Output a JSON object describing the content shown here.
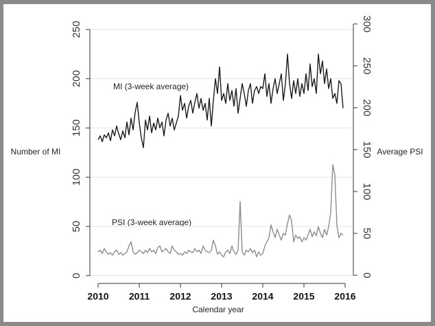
{
  "chart_data": {
    "type": "line",
    "x_label": "Calendar year",
    "y_label": "Number of MI",
    "y2_label": "Average PSI",
    "annotations": [
      "MI (3-week average)",
      "PSI (3-week average)"
    ],
    "xlim": [
      2009.8,
      2016.2
    ],
    "xticks": [
      2010,
      2011,
      2012,
      2013,
      2014,
      2015,
      2016
    ],
    "ylim": [
      -3,
      259
    ],
    "yticks": [
      0,
      50,
      100,
      150,
      200,
      250
    ],
    "y2lim": [
      -4,
      304
    ],
    "y2ticks": [
      0,
      50,
      100,
      150,
      200,
      250,
      300
    ],
    "grid": true,
    "x": [
      2010,
      2010.05,
      2010.1,
      2010.15,
      2010.2,
      2010.25,
      2010.3,
      2010.35,
      2010.4,
      2010.45,
      2010.5,
      2010.55,
      2010.6,
      2010.65,
      2010.7,
      2010.75,
      2010.8,
      2010.85,
      2010.9,
      2010.95,
      2011,
      2011.05,
      2011.1,
      2011.15,
      2011.2,
      2011.25,
      2011.3,
      2011.35,
      2011.4,
      2011.45,
      2011.5,
      2011.55,
      2011.6,
      2011.65,
      2011.7,
      2011.75,
      2011.8,
      2011.85,
      2011.9,
      2011.95,
      2012,
      2012.05,
      2012.1,
      2012.15,
      2012.2,
      2012.25,
      2012.3,
      2012.35,
      2012.4,
      2012.45,
      2012.5,
      2012.55,
      2012.6,
      2012.65,
      2012.7,
      2012.75,
      2012.8,
      2012.85,
      2012.9,
      2012.95,
      2013,
      2013.05,
      2013.1,
      2013.15,
      2013.2,
      2013.25,
      2013.3,
      2013.35,
      2013.4,
      2013.45,
      2013.5,
      2013.55,
      2013.6,
      2013.65,
      2013.7,
      2013.75,
      2013.8,
      2013.85,
      2013.9,
      2013.95,
      2014,
      2014.05,
      2014.1,
      2014.15,
      2014.2,
      2014.25,
      2014.3,
      2014.35,
      2014.4,
      2014.45,
      2014.5,
      2014.55,
      2014.6,
      2014.65,
      2014.7,
      2014.75,
      2014.8,
      2014.85,
      2014.9,
      2014.95,
      2015,
      2015.05,
      2015.1,
      2015.15,
      2015.2,
      2015.25,
      2015.3,
      2015.35,
      2015.4,
      2015.45,
      2015.5,
      2015.55,
      2015.6,
      2015.65,
      2015.7,
      2015.75,
      2015.8,
      2015.85,
      2015.9,
      2015.95
    ],
    "series": [
      {
        "name": "MI",
        "color": "#1a1a1a",
        "axis": "y",
        "values": [
          138,
          142,
          136,
          143,
          140,
          145,
          137,
          148,
          142,
          152,
          144,
          138,
          147,
          140,
          156,
          143,
          160,
          148,
          166,
          176,
          155,
          140,
          130,
          158,
          148,
          162,
          145,
          155,
          148,
          160,
          150,
          156,
          142,
          158,
          165,
          152,
          160,
          148,
          155,
          162,
          183,
          168,
          175,
          160,
          172,
          178,
          165,
          176,
          185,
          170,
          180,
          168,
          175,
          158,
          180,
          152,
          178,
          200,
          185,
          212,
          178,
          185,
          175,
          195,
          178,
          188,
          172,
          190,
          165,
          180,
          195,
          185,
          172,
          188,
          195,
          175,
          188,
          192,
          185,
          192,
          190,
          205,
          182,
          195,
          175,
          190,
          200,
          185,
          195,
          205,
          178,
          195,
          225,
          195,
          180,
          198,
          185,
          200,
          182,
          195,
          185,
          205,
          188,
          215,
          192,
          200,
          185,
          225,
          205,
          218,
          195,
          210,
          190,
          200,
          180,
          185,
          175,
          198,
          195,
          170
        ]
      },
      {
        "name": "PSI",
        "color": "#8c8c8c",
        "axis": "y2",
        "values": [
          28,
          30,
          26,
          32,
          28,
          25,
          27,
          24,
          28,
          30,
          25,
          27,
          24,
          26,
          28,
          35,
          40,
          28,
          25,
          27,
          30,
          28,
          26,
          30,
          27,
          32,
          28,
          30,
          26,
          33,
          35,
          28,
          30,
          32,
          28,
          26,
          35,
          30,
          28,
          25,
          26,
          24,
          28,
          26,
          30,
          28,
          27,
          32,
          28,
          30,
          26,
          35,
          30,
          28,
          27,
          30,
          42,
          35,
          25,
          28,
          24,
          22,
          28,
          30,
          26,
          35,
          28,
          25,
          30,
          88,
          28,
          24,
          30,
          28,
          32,
          27,
          30,
          22,
          28,
          24,
          26,
          35,
          40,
          45,
          60,
          52,
          45,
          55,
          48,
          42,
          50,
          48,
          62,
          72,
          65,
          40,
          48,
          44,
          46,
          40,
          45,
          42,
          48,
          55,
          46,
          52,
          47,
          58,
          50,
          45,
          55,
          48,
          58,
          75,
          132,
          120,
          60,
          45,
          50,
          48
        ]
      }
    ]
  }
}
